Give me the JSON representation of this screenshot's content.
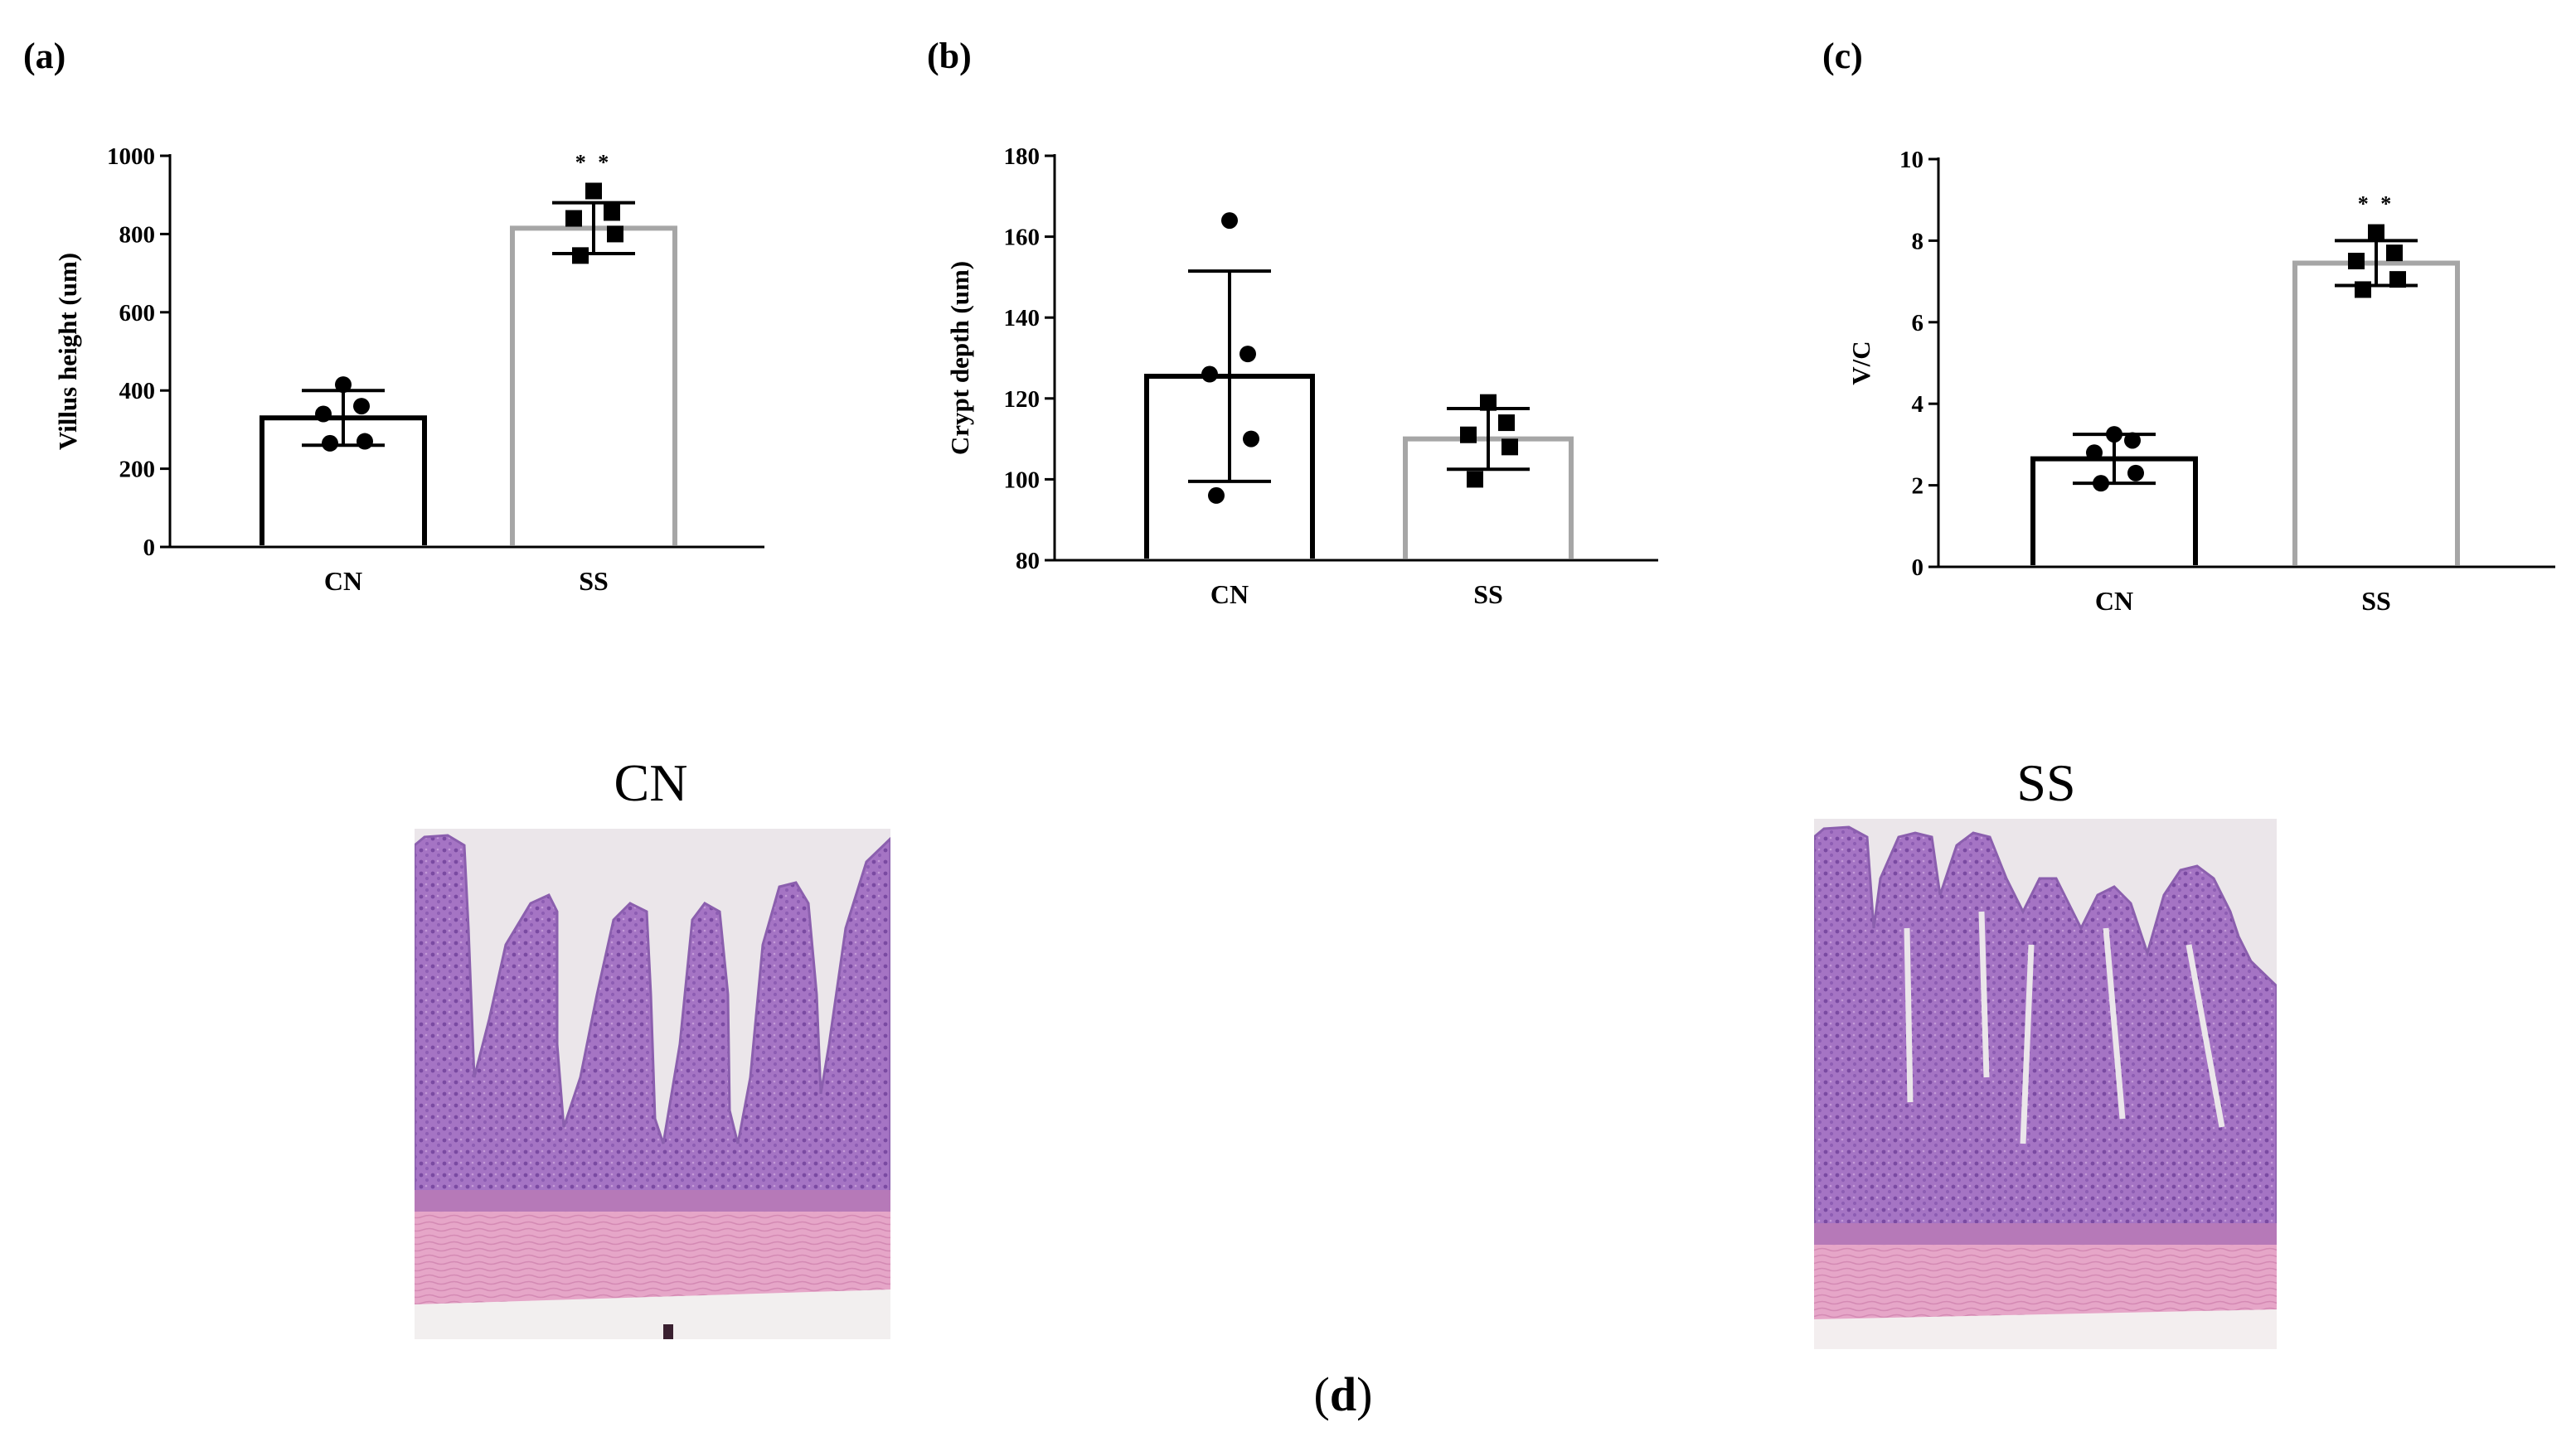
{
  "colors": {
    "cn_bar": "#000000",
    "ss_bar": "#a6a6a6",
    "axis": "#000000",
    "tissue_villi": "#a574c4",
    "tissue_muscle": "#e6a6c8",
    "lumen": "#ebe6ea"
  },
  "chart_data": [
    {
      "type": "bar",
      "panel_label": "(a)",
      "categories": [
        "CN",
        "SS"
      ],
      "values": [
        330,
        815
      ],
      "error": [
        70,
        65
      ],
      "points": [
        [
          415,
          360,
          340,
          270,
          265
        ],
        [
          910,
          855,
          840,
          800,
          745
        ]
      ],
      "point_markers": [
        "circle",
        "square"
      ],
      "significance": [
        "",
        "* *"
      ],
      "ylabel": "Villus height (um)",
      "ylim": [
        0,
        1000
      ],
      "yticks": [
        0,
        200,
        400,
        600,
        800,
        1000
      ]
    },
    {
      "type": "bar",
      "panel_label": "(b)",
      "categories": [
        "CN",
        "SS"
      ],
      "values": [
        125.5,
        110
      ],
      "error": [
        26,
        7.5
      ],
      "points": [
        [
          164,
          131,
          126,
          110,
          96
        ],
        [
          119,
          114,
          111,
          108,
          100
        ]
      ],
      "point_markers": [
        "circle",
        "square"
      ],
      "significance": [
        "",
        ""
      ],
      "ylabel": "Crypt depth (um)",
      "ylim": [
        80,
        180
      ],
      "yticks": [
        80,
        100,
        120,
        140,
        160,
        180
      ]
    },
    {
      "type": "bar",
      "panel_label": "(c)",
      "categories": [
        "CN",
        "SS"
      ],
      "values": [
        2.65,
        7.45
      ],
      "error": [
        0.6,
        0.55
      ],
      "points": [
        [
          3.25,
          3.1,
          2.8,
          2.3,
          2.05
        ],
        [
          8.2,
          7.7,
          7.5,
          7.05,
          6.8
        ]
      ],
      "point_markers": [
        "circle",
        "square"
      ],
      "significance": [
        "",
        "* *"
      ],
      "ylabel": "V/C",
      "ylim": [
        0,
        10
      ],
      "yticks": [
        0,
        2,
        4,
        6,
        8,
        10
      ]
    }
  ],
  "photos": [
    {
      "title": "CN"
    },
    {
      "title": "SS"
    }
  ],
  "sub_label": {
    "open": "(",
    "letter": "d",
    "close": ")"
  }
}
